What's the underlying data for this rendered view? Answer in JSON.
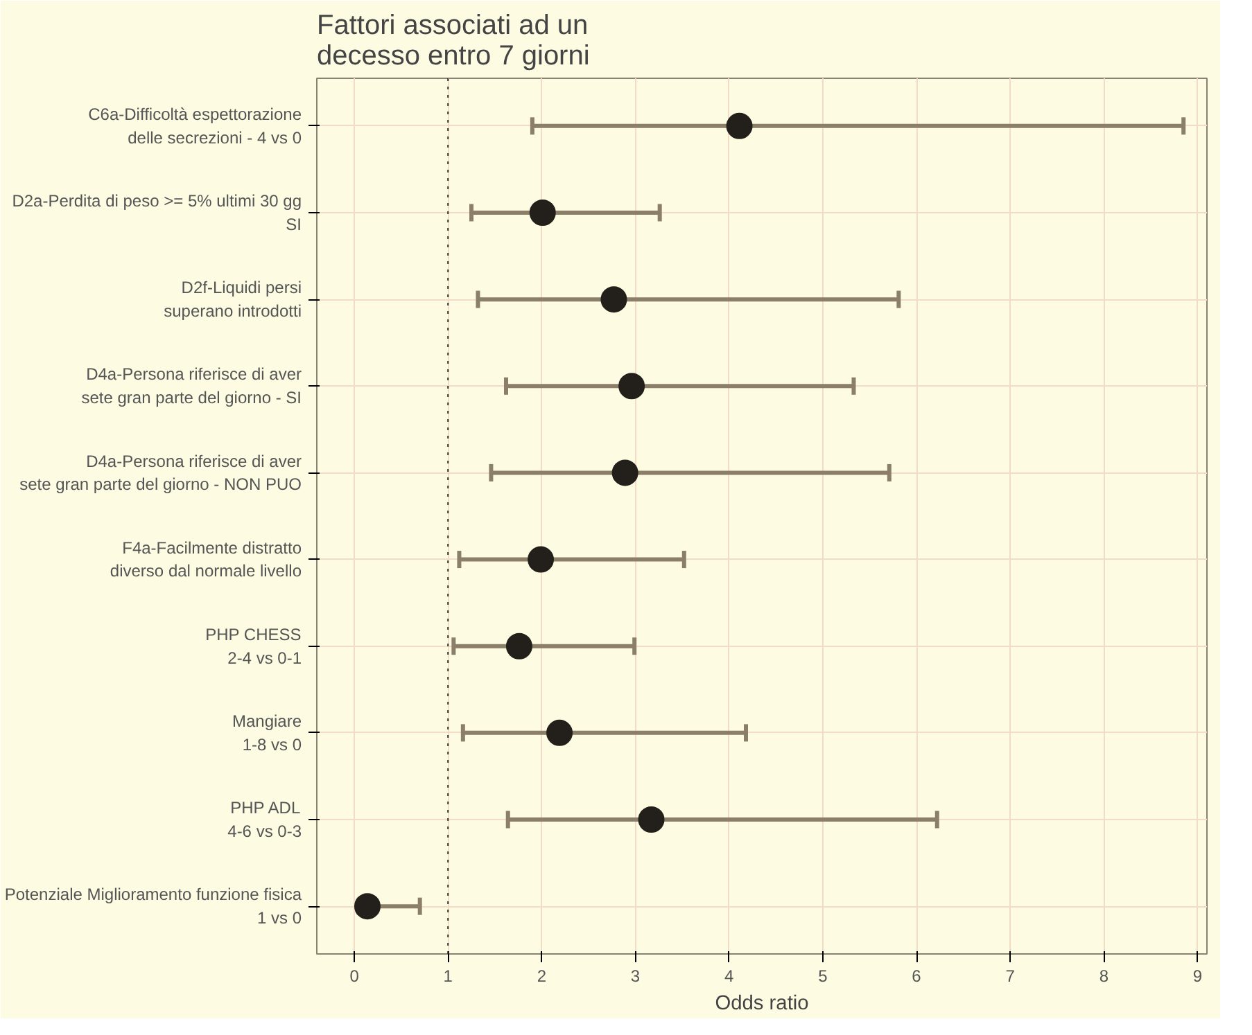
{
  "chart_data": {
    "type": "scatter",
    "title": "Fattori associati ad un\ndecesso entro 7 giorni",
    "xlabel": "Odds ratio",
    "orientation": "horizontal",
    "categories": [
      "C6a-Difficoltà espettorazione\ndelle secrezioni - 4 vs 0",
      "D2a-Perdita di peso >= 5% ultimi 30 gg\nSI",
      "D2f-Liquidi persi\nsuperano introdotti",
      "D4a-Persona riferisce di aver\nsete gran parte del giorno - SI",
      "D4a-Persona riferisce di aver\nsete gran parte del giorno - NON PUO",
      "F4a-Facilmente distratto\ndiverso dal normale livello",
      "PHP CHESS\n2-4 vs 0-1",
      "Mangiare\n1-8 vs 0",
      "PHP ADL\n4-6 vs 0-3",
      "Potenziale Miglioramento funzione fisica\n1 vs 0"
    ],
    "series": [
      {
        "color": "#231f1a",
        "values": [
          4.11,
          2.01,
          2.77,
          2.96,
          2.89,
          1.99,
          1.76,
          2.19,
          3.17,
          0.14
        ],
        "errors": [
          [
            1.9,
            8.85
          ],
          [
            1.25,
            3.26
          ],
          [
            1.32,
            5.81
          ],
          [
            1.62,
            5.33
          ],
          [
            1.46,
            5.71
          ],
          [
            1.12,
            3.52
          ],
          [
            1.06,
            2.99
          ],
          [
            1.16,
            4.18
          ],
          [
            1.64,
            6.22
          ],
          [
            0.05,
            0.7
          ]
        ]
      }
    ],
    "xlim": [
      -0.4,
      9.1
    ],
    "xticks": [
      0,
      1,
      2,
      3,
      4,
      5,
      6,
      7,
      8,
      9
    ],
    "grid": true,
    "marker": "circle",
    "ref_lines": [
      {
        "axis": "x",
        "value": 1,
        "color": "#333333",
        "line_style": "dotted"
      }
    ]
  }
}
